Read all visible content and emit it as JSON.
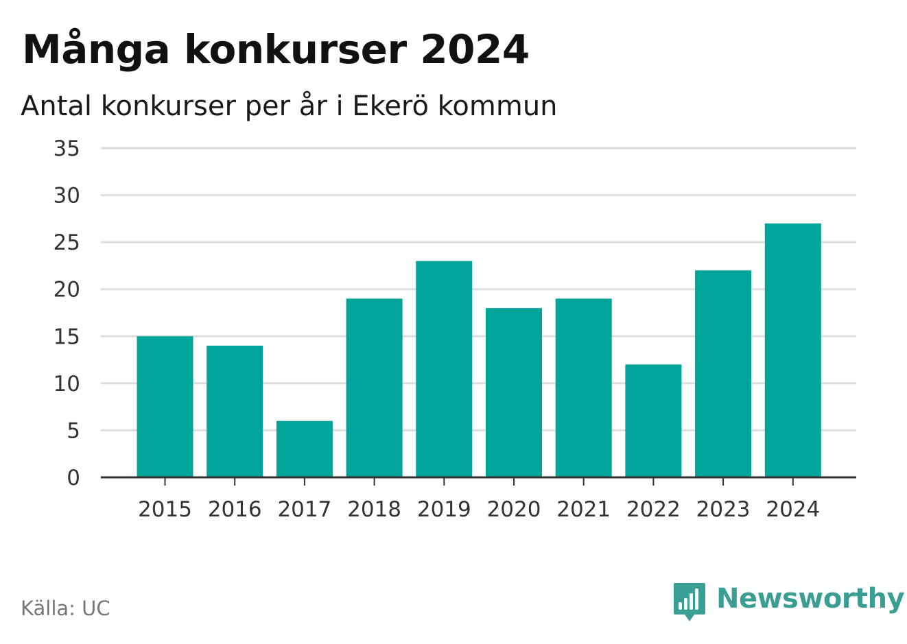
{
  "header": {
    "title": "Många konkurser 2024",
    "subtitle": "Antal konkurser per år i Ekerö kommun"
  },
  "footer": {
    "source": "Källa: UC",
    "brand": "Newsworthy",
    "brand_icon": "bar-chart-speech-bubble-icon"
  },
  "colors": {
    "bar": "#00a499",
    "grid": "#dddddd",
    "axis": "#333333",
    "brand": "#3a9e94"
  },
  "chart_data": {
    "type": "bar",
    "title": "Många konkurser 2024",
    "subtitle": "Antal konkurser per år i Ekerö kommun",
    "categories": [
      "2015",
      "2016",
      "2017",
      "2018",
      "2019",
      "2020",
      "2021",
      "2022",
      "2023",
      "2024"
    ],
    "values": [
      15,
      14,
      6,
      19,
      23,
      18,
      19,
      12,
      22,
      27
    ],
    "ylim": [
      0,
      35
    ],
    "yticks": [
      "0",
      "5",
      "10",
      "15",
      "20",
      "25",
      "30",
      "35"
    ],
    "xlabel": "",
    "ylabel": "",
    "grid": true,
    "legend": "none"
  }
}
